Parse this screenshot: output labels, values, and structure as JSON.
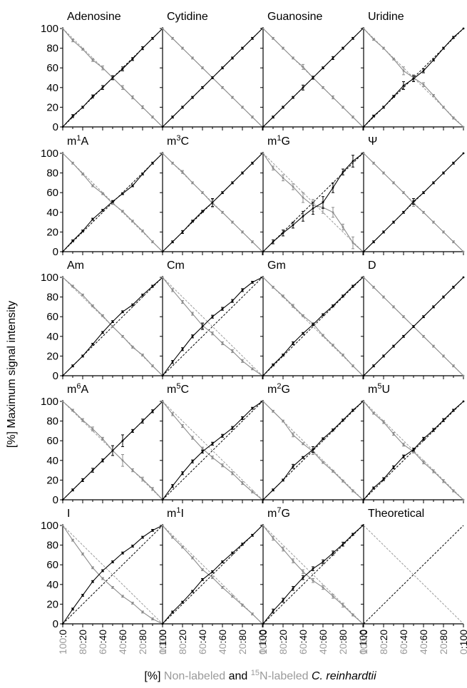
{
  "chart_data": {
    "type": "line",
    "ylabel": "[%] Maximum signal intensity",
    "xlabel": {
      "prefix": "[%] ",
      "part1": "Non-labeled",
      "part2": " and ",
      "part3_sup": "15",
      "part3": "N-labeled ",
      "part4": "C. reinhardtii"
    },
    "ylim": [
      0,
      100
    ],
    "y_ticks": [
      "0",
      "20",
      "40",
      "60",
      "80",
      "100"
    ],
    "x_ratio_labels": [
      {
        "a": "100",
        "b": "0"
      },
      {
        "a": "80",
        "b": "20"
      },
      {
        "a": "60",
        "b": "40"
      },
      {
        "a": "40",
        "b": "60"
      },
      {
        "a": "20",
        "b": "80"
      },
      {
        "a": "0",
        "b": "100"
      }
    ],
    "x": [
      0,
      10,
      20,
      30,
      40,
      50,
      60,
      70,
      80,
      90,
      100
    ],
    "theory_up": [
      0,
      10,
      20,
      30,
      40,
      50,
      60,
      70,
      80,
      90,
      100
    ],
    "theory_down": [
      100,
      90,
      80,
      70,
      60,
      50,
      40,
      30,
      20,
      10,
      0
    ],
    "panels": [
      {
        "base": "Adenosine",
        "sup": "",
        "up": [
          0,
          11,
          20,
          31,
          40,
          50,
          59,
          69,
          80,
          90,
          100
        ],
        "down": [
          100,
          88,
          79,
          68,
          60,
          50,
          40,
          30,
          20,
          10,
          0
        ],
        "err": [
          0,
          1.5,
          1,
          1.5,
          2,
          2,
          2,
          1.5,
          1.5,
          1,
          0
        ]
      },
      {
        "base": "Cytidine",
        "sup": "",
        "up": [
          0,
          10,
          20,
          30,
          40,
          50,
          60,
          70,
          80,
          90,
          100
        ],
        "down": [
          100,
          90,
          80,
          70,
          60,
          50,
          40,
          30,
          20,
          10,
          0
        ],
        "err": [
          0,
          1,
          1,
          1,
          1,
          1,
          1,
          1,
          1,
          1,
          0
        ]
      },
      {
        "base": "Guanosine",
        "sup": "",
        "up": [
          0,
          10,
          20,
          30,
          40,
          50,
          60,
          70,
          80,
          90,
          100
        ],
        "down": [
          100,
          90,
          80,
          70,
          61,
          50,
          40,
          30,
          20,
          10,
          0
        ],
        "err": [
          0,
          1,
          1,
          1,
          2.5,
          1.5,
          1,
          1.5,
          1,
          1,
          0
        ]
      },
      {
        "base": "Uridine",
        "sup": "",
        "up": [
          0,
          11,
          20,
          31,
          42,
          49,
          57,
          68,
          80,
          91,
          100
        ],
        "down": [
          100,
          89,
          80,
          69,
          57,
          50,
          43,
          32,
          20,
          9,
          0
        ],
        "err": [
          0,
          1,
          1,
          1,
          4,
          3,
          2,
          1,
          1,
          1,
          0
        ]
      },
      {
        "base": "m",
        "sup": "1",
        "tail": "A",
        "up": [
          0,
          11,
          21,
          33,
          42,
          51,
          59,
          67,
          79,
          90,
          100
        ],
        "down": [
          100,
          90,
          79,
          67,
          59,
          49,
          41,
          31,
          21,
          10,
          0
        ],
        "err": [
          0,
          1,
          1,
          1,
          1,
          1,
          1,
          1,
          1,
          1,
          0
        ]
      },
      {
        "base": "m",
        "sup": "3",
        "tail": "C",
        "up": [
          0,
          10,
          20,
          31,
          41,
          50,
          60,
          70,
          80,
          90,
          100
        ],
        "down": [
          100,
          90,
          81,
          70,
          60,
          49,
          40,
          30,
          20,
          10,
          0
        ],
        "err": [
          0,
          1,
          1.5,
          1,
          1,
          4,
          1,
          1,
          1,
          1,
          0
        ]
      },
      {
        "base": "m",
        "sup": "1",
        "tail": "G",
        "up": [
          0,
          10,
          19,
          27,
          36,
          44,
          50,
          65,
          81,
          92,
          100
        ],
        "down": [
          100,
          85,
          75,
          66,
          55,
          47,
          45,
          40,
          25,
          9,
          0
        ],
        "err": [
          0,
          2,
          3,
          3,
          5,
          6,
          6,
          5,
          3,
          6,
          0
        ]
      },
      {
        "base": "Ψ",
        "sup": "",
        "up": [
          0,
          10,
          20,
          30,
          40,
          51,
          60,
          70,
          80,
          90,
          100
        ],
        "down": [
          100,
          90,
          80,
          70,
          60,
          49,
          40,
          30,
          20,
          10,
          0
        ],
        "err": [
          0,
          1,
          1,
          1,
          1,
          3,
          1,
          1,
          1,
          1,
          0
        ]
      },
      {
        "base": "Am",
        "sup": "",
        "up": [
          0,
          10,
          20,
          32,
          44,
          55,
          65,
          72,
          82,
          91,
          100
        ],
        "down": [
          100,
          91,
          82,
          71,
          61,
          50,
          40,
          29,
          21,
          10,
          0
        ],
        "err": [
          0,
          1,
          1,
          1,
          1,
          1,
          1,
          1,
          1,
          1,
          0
        ]
      },
      {
        "base": "Cm",
        "sup": "",
        "up": [
          0,
          14,
          27,
          40,
          50,
          60,
          68,
          76,
          87,
          95,
          100
        ],
        "down": [
          100,
          87,
          75,
          63,
          51,
          43,
          33,
          25,
          15,
          7,
          0
        ],
        "err": [
          0,
          1.5,
          1.5,
          1.5,
          3,
          1.5,
          1.5,
          1.5,
          1.5,
          1,
          0
        ]
      },
      {
        "base": "Gm",
        "sup": "",
        "up": [
          0,
          11,
          21,
          33,
          43,
          52,
          62,
          71,
          81,
          91,
          100
        ],
        "down": [
          100,
          90,
          81,
          71,
          61,
          53,
          41,
          31,
          21,
          10,
          0
        ],
        "err": [
          0,
          1,
          1,
          1.5,
          1,
          1,
          1,
          1,
          1,
          1,
          0
        ]
      },
      {
        "base": "D",
        "sup": "",
        "up": [
          0,
          10,
          20,
          30,
          40,
          50,
          60,
          70,
          80,
          90,
          100
        ],
        "down": [
          100,
          90,
          80,
          70,
          60,
          50,
          40,
          30,
          20,
          10,
          0
        ],
        "err": [
          0,
          1,
          1,
          1,
          1,
          1,
          1,
          1,
          1,
          1,
          0
        ]
      },
      {
        "base": "m",
        "sup": "6",
        "tail": "A",
        "up": [
          0,
          10,
          20,
          30,
          40,
          50,
          60,
          70,
          80,
          90,
          100
        ],
        "down": [
          100,
          91,
          81,
          72,
          62,
          50,
          40,
          30,
          21,
          11,
          0
        ],
        "err": [
          0,
          1,
          1.5,
          2,
          1.5,
          5,
          6,
          1.5,
          2,
          1.5,
          0
        ]
      },
      {
        "base": "m",
        "sup": "5",
        "tail": "C",
        "up": [
          0,
          14,
          27,
          39,
          49,
          57,
          65,
          73,
          83,
          93,
          100
        ],
        "down": [
          100,
          87,
          75,
          63,
          52,
          43,
          35,
          27,
          17,
          8,
          0
        ],
        "err": [
          0,
          1.5,
          1.5,
          1.5,
          1.5,
          1.5,
          1.5,
          1.5,
          1.5,
          1,
          0
        ]
      },
      {
        "base": "m",
        "sup": "2",
        "tail": "G",
        "up": [
          0,
          10,
          20,
          34,
          43,
          51,
          62,
          71,
          81,
          91,
          100
        ],
        "down": [
          100,
          90,
          80,
          66,
          57,
          49,
          38,
          29,
          19,
          9,
          0
        ],
        "err": [
          0,
          1,
          1,
          2,
          1,
          3,
          1,
          1,
          1,
          1,
          0
        ]
      },
      {
        "base": "m",
        "sup": "5",
        "tail": "U",
        "up": [
          0,
          12,
          21,
          33,
          44,
          51,
          62,
          71,
          81,
          91,
          100
        ],
        "down": [
          100,
          88,
          79,
          67,
          56,
          49,
          38,
          29,
          19,
          9,
          0
        ],
        "err": [
          0,
          1,
          1.5,
          1.5,
          1.5,
          1.5,
          1.5,
          1.5,
          1.5,
          1,
          0
        ]
      },
      {
        "base": "I",
        "sup": "",
        "up": [
          0,
          15,
          29,
          43,
          54,
          63,
          72,
          79,
          88,
          95,
          100
        ],
        "down": [
          100,
          85,
          71,
          57,
          46,
          37,
          28,
          21,
          12,
          5,
          0
        ],
        "err": [
          0,
          1,
          1,
          1,
          1,
          1,
          1,
          1,
          1,
          1,
          0
        ]
      },
      {
        "base": "m",
        "sup": "1",
        "tail": "I",
        "up": [
          0,
          12,
          22,
          33,
          45,
          53,
          63,
          72,
          81,
          90,
          100
        ],
        "down": [
          100,
          88,
          78,
          67,
          55,
          47,
          37,
          28,
          19,
          10,
          0
        ],
        "err": [
          0,
          1,
          1,
          1,
          1,
          1,
          1,
          1,
          1,
          1,
          0
        ]
      },
      {
        "base": "m",
        "sup": "7",
        "tail": "G",
        "up": [
          0,
          13,
          24,
          36,
          47,
          56,
          63,
          72,
          81,
          91,
          100
        ],
        "down": [
          100,
          87,
          76,
          64,
          53,
          44,
          37,
          28,
          19,
          9,
          0
        ],
        "err": [
          0,
          2,
          2,
          2,
          2,
          2,
          2,
          2,
          2,
          1,
          0
        ]
      },
      {
        "base": "Theoretical",
        "sup": "",
        "theoretical": true
      }
    ],
    "colors": {
      "measured_up": "#000000",
      "measured_down": "#8c8c8c",
      "theory_up": "#000000",
      "theory_down": "#9a9a9a",
      "axis": "#000000",
      "x_label_grey": "#9a9a9a"
    }
  }
}
